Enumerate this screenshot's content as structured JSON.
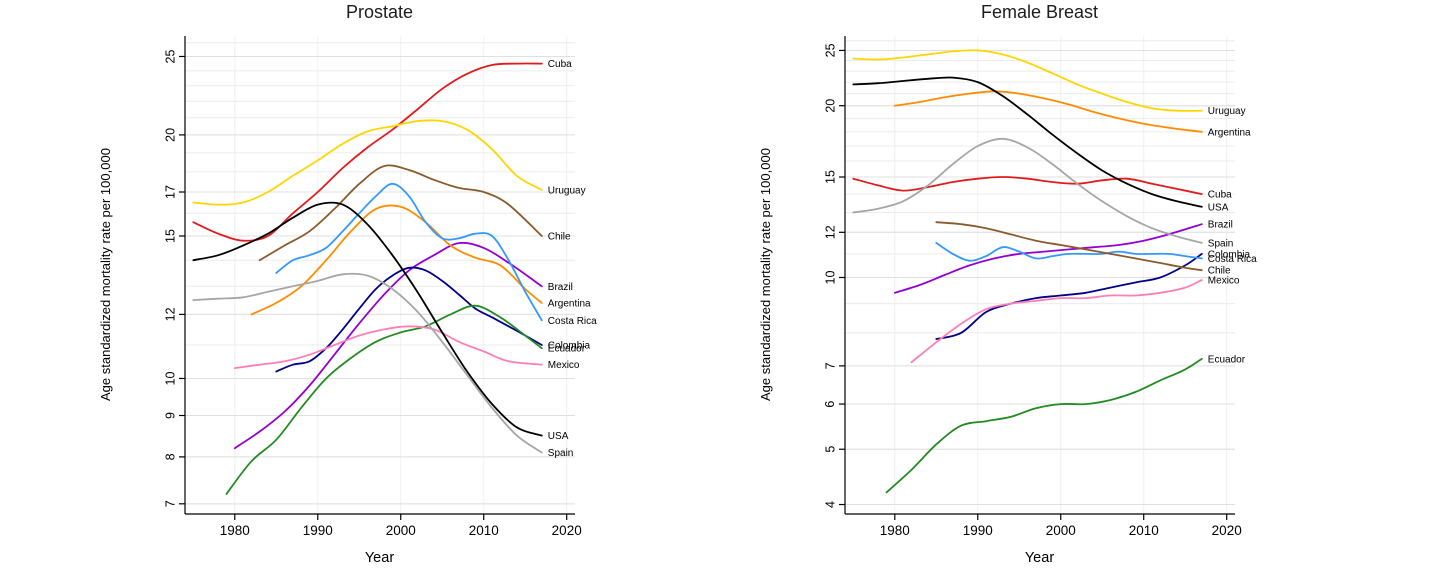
{
  "figure": {
    "background": "#ffffff"
  },
  "chart_data": [
    {
      "type": "line",
      "title": "Prostate",
      "xlabel": "Year",
      "ylabel": "Age standardized mortality rate per 100,000",
      "x_ticks": [
        1980,
        1990,
        2000,
        2010,
        2020
      ],
      "y_ticks": [
        7,
        8,
        9,
        10,
        12,
        15,
        17,
        20,
        25
      ],
      "xlim": [
        1974,
        2021
      ],
      "ylim": [
        6.8,
        26.5
      ],
      "y_scale": "log",
      "grid": true,
      "legend_position": "right-end-labels",
      "series": [
        {
          "name": "Cuba",
          "color": "#e31a1c",
          "x": [
            1975,
            1978,
            1981,
            1984,
            1987,
            1990,
            1993,
            1996,
            1999,
            2002,
            2005,
            2008,
            2011,
            2014,
            2017
          ],
          "y": [
            15.6,
            15.1,
            14.8,
            15.0,
            16.0,
            17.0,
            18.2,
            19.3,
            20.3,
            21.5,
            22.8,
            23.8,
            24.4,
            24.5,
            24.5
          ]
        },
        {
          "name": "Uruguay",
          "color": "#ffd600",
          "x": [
            1975,
            1978,
            1981,
            1984,
            1987,
            1990,
            1993,
            1996,
            1999,
            2002,
            2005,
            2008,
            2011,
            2014,
            2017
          ],
          "y": [
            16.5,
            16.4,
            16.5,
            17.0,
            17.8,
            18.6,
            19.5,
            20.2,
            20.5,
            20.8,
            20.8,
            20.3,
            19.2,
            17.8,
            17.1
          ]
        },
        {
          "name": "Chile",
          "color": "#8b5a2b",
          "x": [
            1983,
            1986,
            1989,
            1992,
            1995,
            1998,
            2001,
            2004,
            2007,
            2010,
            2013,
            2017
          ],
          "y": [
            14.0,
            14.6,
            15.2,
            16.2,
            17.4,
            18.3,
            18.1,
            17.6,
            17.2,
            17.0,
            16.4,
            15.0
          ]
        },
        {
          "name": "Brazil",
          "color": "#9400d3",
          "x": [
            1980,
            1983,
            1986,
            1989,
            1992,
            1995,
            1998,
            2001,
            2004,
            2007,
            2010,
            2013,
            2017
          ],
          "y": [
            8.2,
            8.6,
            9.1,
            9.8,
            10.7,
            11.7,
            12.7,
            13.6,
            14.2,
            14.7,
            14.5,
            13.9,
            13.0
          ]
        },
        {
          "name": "Argentina",
          "color": "#ff8c00",
          "x": [
            1982,
            1985,
            1988,
            1991,
            1994,
            1997,
            2000,
            2003,
            2006,
            2009,
            2012,
            2015,
            2017
          ],
          "y": [
            12.0,
            12.4,
            13.0,
            14.0,
            15.2,
            16.2,
            16.3,
            15.6,
            14.6,
            14.1,
            13.8,
            12.9,
            12.4
          ]
        },
        {
          "name": "Costa Rica",
          "color": "#3399ff",
          "x": [
            1985,
            1987,
            1989,
            1991,
            1993,
            1995,
            1997,
            1999,
            2001,
            2003,
            2005,
            2007,
            2009,
            2011,
            2013,
            2015,
            2017
          ],
          "y": [
            13.5,
            14.0,
            14.2,
            14.5,
            15.2,
            16.0,
            16.8,
            17.4,
            16.8,
            15.6,
            14.9,
            14.9,
            15.1,
            15.0,
            14.0,
            12.8,
            11.8
          ]
        },
        {
          "name": "Colombia",
          "color": "#00008b",
          "x": [
            1985,
            1987,
            1989,
            1991,
            1993,
            1995,
            1997,
            1999,
            2001,
            2003,
            2005,
            2007,
            2009,
            2011,
            2013,
            2015,
            2017
          ],
          "y": [
            10.2,
            10.4,
            10.5,
            10.9,
            11.5,
            12.2,
            12.9,
            13.4,
            13.7,
            13.6,
            13.2,
            12.7,
            12.2,
            11.9,
            11.6,
            11.3,
            11.0
          ]
        },
        {
          "name": "Ecuador",
          "color": "#228b22",
          "x": [
            1979,
            1982,
            1985,
            1988,
            1991,
            1994,
            1997,
            2000,
            2003,
            2006,
            2009,
            2012,
            2015,
            2017
          ],
          "y": [
            7.2,
            7.9,
            8.4,
            9.2,
            10.0,
            10.6,
            11.1,
            11.4,
            11.6,
            12.0,
            12.3,
            11.9,
            11.3,
            10.9
          ]
        },
        {
          "name": "Mexico",
          "color": "#ff7eb6",
          "x": [
            1980,
            1983,
            1986,
            1989,
            1992,
            1995,
            1998,
            2001,
            2004,
            2007,
            2010,
            2013,
            2017
          ],
          "y": [
            10.3,
            10.4,
            10.5,
            10.7,
            11.0,
            11.3,
            11.5,
            11.6,
            11.5,
            11.1,
            10.8,
            10.5,
            10.4
          ]
        },
        {
          "name": "USA",
          "color": "#000000",
          "x": [
            1975,
            1978,
            1981,
            1984,
            1987,
            1990,
            1993,
            1996,
            1999,
            2002,
            2005,
            2008,
            2011,
            2014,
            2017
          ],
          "y": [
            14.0,
            14.2,
            14.6,
            15.1,
            15.8,
            16.4,
            16.4,
            15.5,
            14.2,
            12.8,
            11.4,
            10.2,
            9.3,
            8.7,
            8.5
          ]
        },
        {
          "name": "Spain",
          "color": "#a6a6a6",
          "x": [
            1975,
            1978,
            1981,
            1984,
            1987,
            1990,
            1993,
            1996,
            1999,
            2002,
            2005,
            2008,
            2011,
            2014,
            2017
          ],
          "y": [
            12.5,
            12.55,
            12.6,
            12.8,
            13.0,
            13.2,
            13.45,
            13.4,
            12.9,
            12.1,
            11.1,
            10.1,
            9.2,
            8.5,
            8.1
          ]
        }
      ]
    },
    {
      "type": "line",
      "title": "Female Breast",
      "xlabel": "Year",
      "ylabel": "Age standardized mortality rate per 100,000",
      "x_ticks": [
        1980,
        1990,
        2000,
        2010,
        2020
      ],
      "y_ticks": [
        4,
        5,
        6,
        7,
        10,
        12,
        15,
        20,
        25
      ],
      "xlim": [
        1974,
        2021
      ],
      "ylim": [
        3.85,
        26.5
      ],
      "y_scale": "log",
      "grid": true,
      "legend_position": "right-end-labels",
      "series": [
        {
          "name": "Uruguay",
          "color": "#ffd600",
          "x": [
            1975,
            1978,
            1981,
            1984,
            1987,
            1990,
            1993,
            1996,
            1999,
            2002,
            2005,
            2008,
            2011,
            2014,
            2017
          ],
          "y": [
            24.2,
            24.1,
            24.3,
            24.6,
            24.9,
            25.0,
            24.6,
            23.8,
            22.8,
            21.8,
            21.0,
            20.3,
            19.8,
            19.6,
            19.6
          ]
        },
        {
          "name": "Argentina",
          "color": "#ff8c00",
          "x": [
            1980,
            1983,
            1986,
            1989,
            1992,
            1995,
            1998,
            2001,
            2004,
            2007,
            2010,
            2013,
            2017
          ],
          "y": [
            20.0,
            20.3,
            20.7,
            21.0,
            21.2,
            21.0,
            20.6,
            20.1,
            19.5,
            19.0,
            18.6,
            18.3,
            18.0
          ]
        },
        {
          "name": "Cuba",
          "color": "#e31a1c",
          "x": [
            1975,
            1978,
            1981,
            1984,
            1987,
            1990,
            1993,
            1996,
            1999,
            2002,
            2005,
            2008,
            2011,
            2014,
            2017
          ],
          "y": [
            14.9,
            14.5,
            14.2,
            14.4,
            14.7,
            14.9,
            15.0,
            14.9,
            14.7,
            14.6,
            14.8,
            14.9,
            14.6,
            14.3,
            14.0
          ]
        },
        {
          "name": "USA",
          "color": "#000000",
          "x": [
            1975,
            1978,
            1981,
            1984,
            1987,
            1990,
            1993,
            1996,
            1999,
            2002,
            2005,
            2008,
            2011,
            2014,
            2017
          ],
          "y": [
            21.8,
            21.9,
            22.1,
            22.3,
            22.4,
            22.0,
            20.8,
            19.3,
            17.8,
            16.5,
            15.4,
            14.6,
            14.0,
            13.6,
            13.3
          ]
        },
        {
          "name": "Brazil",
          "color": "#9400d3",
          "x": [
            1980,
            1983,
            1986,
            1989,
            1992,
            1995,
            1998,
            2001,
            2004,
            2007,
            2010,
            2013,
            2017
          ],
          "y": [
            9.4,
            9.7,
            10.1,
            10.5,
            10.8,
            11.0,
            11.1,
            11.2,
            11.3,
            11.4,
            11.6,
            11.9,
            12.4
          ]
        },
        {
          "name": "Spain",
          "color": "#a6a6a6",
          "x": [
            1975,
            1978,
            1981,
            1984,
            1987,
            1990,
            1993,
            1996,
            1999,
            2002,
            2005,
            2008,
            2011,
            2014,
            2017
          ],
          "y": [
            13.0,
            13.2,
            13.6,
            14.5,
            15.8,
            17.0,
            17.5,
            16.9,
            15.8,
            14.6,
            13.6,
            12.8,
            12.2,
            11.8,
            11.5
          ]
        },
        {
          "name": "Colombia",
          "color": "#00008b",
          "x": [
            1985,
            1988,
            1991,
            1994,
            1997,
            2000,
            2003,
            2006,
            2009,
            2012,
            2015,
            2017
          ],
          "y": [
            7.8,
            8.0,
            8.7,
            9.0,
            9.2,
            9.3,
            9.4,
            9.6,
            9.8,
            10.0,
            10.5,
            11.0
          ]
        },
        {
          "name": "Costa Rica",
          "color": "#3399ff",
          "x": [
            1985,
            1987,
            1989,
            1991,
            1993,
            1995,
            1997,
            1999,
            2001,
            2003,
            2005,
            2007,
            2009,
            2011,
            2013,
            2015,
            2017
          ],
          "y": [
            11.5,
            11.0,
            10.7,
            10.9,
            11.3,
            11.1,
            10.8,
            10.9,
            11.0,
            11.0,
            11.0,
            11.1,
            11.0,
            11.0,
            11.0,
            10.9,
            10.8
          ]
        },
        {
          "name": "Chile",
          "color": "#8b5a2b",
          "x": [
            1985,
            1988,
            1991,
            1994,
            1997,
            2000,
            2003,
            2006,
            2009,
            2012,
            2015,
            2017
          ],
          "y": [
            12.5,
            12.4,
            12.2,
            11.9,
            11.6,
            11.4,
            11.2,
            11.0,
            10.8,
            10.6,
            10.4,
            10.3
          ]
        },
        {
          "name": "Mexico",
          "color": "#ff7eb6",
          "x": [
            1982,
            1985,
            1988,
            1991,
            1994,
            1997,
            2000,
            2003,
            2006,
            2009,
            2012,
            2015,
            2017
          ],
          "y": [
            7.1,
            7.7,
            8.3,
            8.8,
            9.0,
            9.1,
            9.2,
            9.2,
            9.3,
            9.3,
            9.4,
            9.6,
            9.9
          ]
        },
        {
          "name": "Ecuador",
          "color": "#228b22",
          "x": [
            1979,
            1982,
            1985,
            1988,
            1991,
            1994,
            1997,
            2000,
            2003,
            2006,
            2009,
            2012,
            2015,
            2017
          ],
          "y": [
            4.2,
            4.6,
            5.1,
            5.5,
            5.6,
            5.7,
            5.9,
            6.0,
            6.0,
            6.1,
            6.3,
            6.6,
            6.9,
            7.2
          ]
        }
      ]
    }
  ]
}
